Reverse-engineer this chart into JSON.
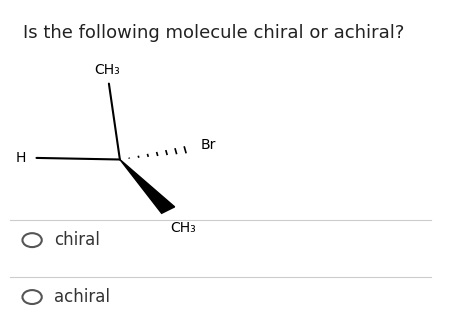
{
  "title": "Is the following molecule chiral or achiral?",
  "title_fontsize": 13,
  "background_color": "#ffffff",
  "options": [
    "chiral",
    "achiral"
  ],
  "option_fontsize": 12,
  "ch3_top_label": "CH₃",
  "h_label": "H",
  "br_label": "Br",
  "ch3_bot_label": "CH₃",
  "sep_color": "#cccccc",
  "text_color": "#222222",
  "option_color": "#333333",
  "circle_color": "#555555"
}
